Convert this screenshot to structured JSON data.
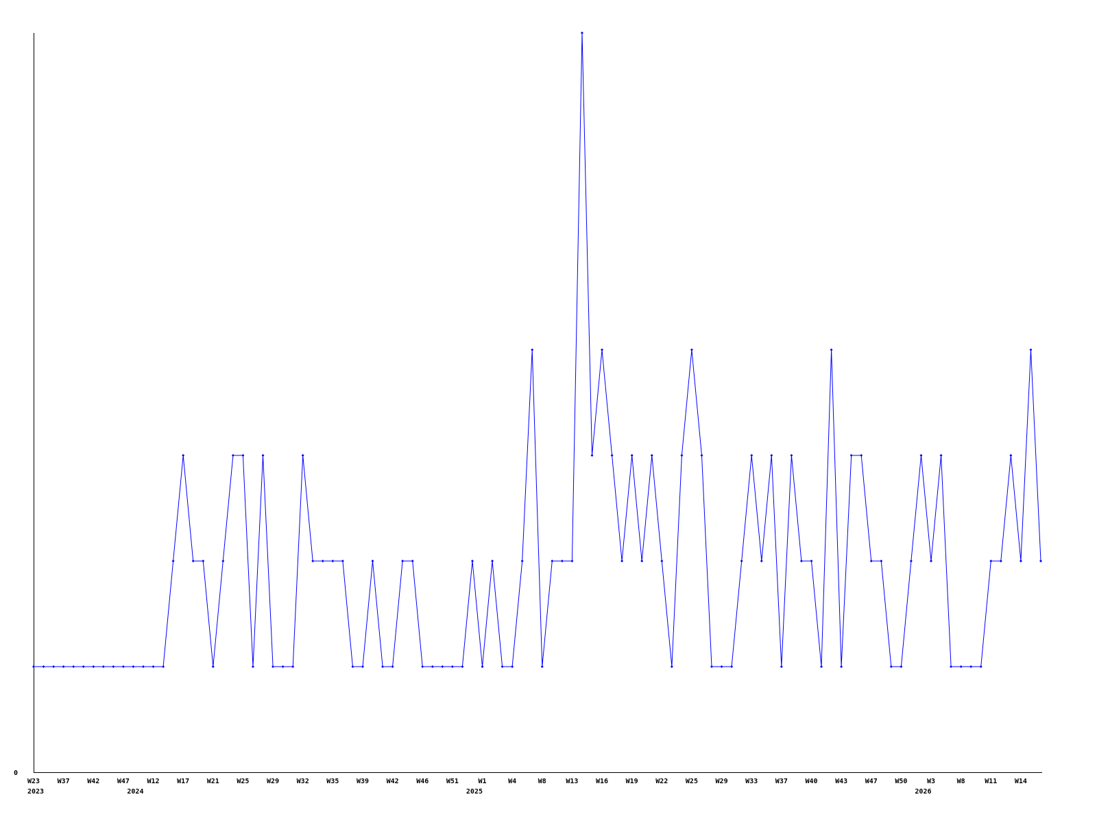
{
  "chart_data": {
    "type": "line",
    "title": "",
    "xlabel": "",
    "ylabel": "",
    "ylim": [
      0,
      7
    ],
    "grid": false,
    "y_tick_labels": [
      {
        "value": 0,
        "label": "0"
      }
    ],
    "values": [
      1,
      1,
      1,
      1,
      1,
      1,
      1,
      1,
      1,
      1,
      1,
      1,
      1,
      1,
      2,
      3,
      2,
      2,
      1,
      2,
      3,
      3,
      1,
      3,
      1,
      1,
      1,
      3,
      2,
      2,
      2,
      2,
      1,
      1,
      2,
      1,
      1,
      2,
      2,
      1,
      1,
      1,
      1,
      1,
      2,
      1,
      2,
      1,
      1,
      2,
      4,
      1,
      2,
      2,
      2,
      7,
      3,
      4,
      3,
      2,
      3,
      2,
      3,
      2,
      1,
      3,
      4,
      3,
      1,
      1,
      1,
      2,
      3,
      2,
      3,
      1,
      3,
      2,
      2,
      1,
      4,
      1,
      3,
      3,
      2,
      2,
      1,
      1,
      2,
      3,
      2,
      3,
      1,
      1,
      1,
      1,
      2,
      2,
      3,
      2,
      4,
      2
    ],
    "x_tick_labels": [
      {
        "index": 0,
        "label": "W23"
      },
      {
        "index": 3,
        "label": "W37"
      },
      {
        "index": 6,
        "label": "W42"
      },
      {
        "index": 9,
        "label": "W47"
      },
      {
        "index": 12,
        "label": "W12"
      },
      {
        "index": 15,
        "label": "W17"
      },
      {
        "index": 18,
        "label": "W21"
      },
      {
        "index": 21,
        "label": "W25"
      },
      {
        "index": 24,
        "label": "W29"
      },
      {
        "index": 27,
        "label": "W32"
      },
      {
        "index": 30,
        "label": "W35"
      },
      {
        "index": 33,
        "label": "W39"
      },
      {
        "index": 36,
        "label": "W42"
      },
      {
        "index": 39,
        "label": "W46"
      },
      {
        "index": 42,
        "label": "W51"
      },
      {
        "index": 45,
        "label": "W1"
      },
      {
        "index": 48,
        "label": "W4"
      },
      {
        "index": 51,
        "label": "W8"
      },
      {
        "index": 54,
        "label": "W13"
      },
      {
        "index": 57,
        "label": "W16"
      },
      {
        "index": 60,
        "label": "W19"
      },
      {
        "index": 63,
        "label": "W22"
      },
      {
        "index": 66,
        "label": "W25"
      },
      {
        "index": 69,
        "label": "W29"
      },
      {
        "index": 72,
        "label": "W33"
      },
      {
        "index": 75,
        "label": "W37"
      },
      {
        "index": 78,
        "label": "W40"
      },
      {
        "index": 81,
        "label": "W43"
      },
      {
        "index": 84,
        "label": "W47"
      },
      {
        "index": 87,
        "label": "W50"
      },
      {
        "index": 90,
        "label": "W3"
      },
      {
        "index": 93,
        "label": "W8"
      },
      {
        "index": 96,
        "label": "W11"
      },
      {
        "index": 99,
        "label": "W14"
      }
    ],
    "year_labels": [
      {
        "index": 0,
        "label": "2023"
      },
      {
        "index": 10,
        "label": "2024"
      },
      {
        "index": 44,
        "label": "2025"
      },
      {
        "index": 89,
        "label": "2026"
      }
    ],
    "line_color": "#0000ff",
    "axis_color": "#000000"
  }
}
